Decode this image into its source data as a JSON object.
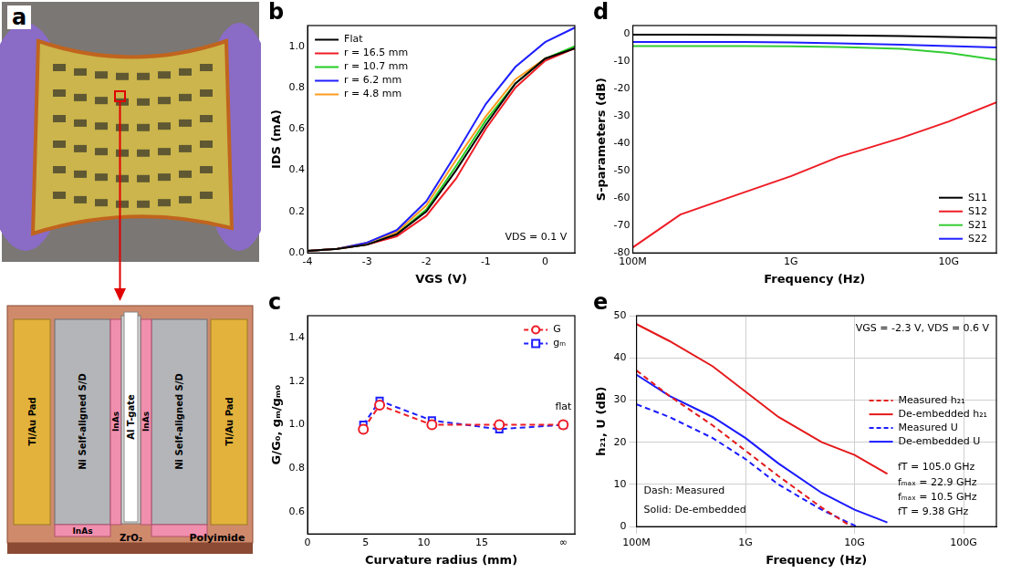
{
  "panel_a": {
    "panel": "a",
    "labels": [
      "InAs",
      "Ni Self-aligned S/D",
      "Ti/Au Pad",
      "InAs",
      "ZrO₂",
      "Al T-gate",
      "InAs",
      "Ni Self-aligned S/D",
      "Ti/Au Pad",
      "Polyimide"
    ]
  },
  "chart_data": [
    {
      "panel": "b",
      "type": "line",
      "x_label": "VGS (V)",
      "y_label": "IDS (mA)",
      "annotations": [
        "VDS = 0.1 V"
      ],
      "x": [
        -4,
        -3.5,
        -3,
        -2.5,
        -2,
        -1.5,
        -1,
        -0.5,
        0,
        0.5
      ],
      "series": [
        {
          "name": "Flat",
          "color": "#000000",
          "marker": "none",
          "line_style": "solid",
          "values": [
            0.01,
            0.02,
            0.04,
            0.09,
            0.2,
            0.4,
            0.62,
            0.82,
            0.94,
            0.99
          ]
        },
        {
          "name": "r = 16.5 mm",
          "color": "#ee1c25",
          "marker": "none",
          "line_style": "solid",
          "values": [
            0.01,
            0.02,
            0.04,
            0.08,
            0.18,
            0.36,
            0.6,
            0.8,
            0.93,
            0.99
          ]
        },
        {
          "name": "r = 10.7 mm",
          "color": "#22cc22",
          "marker": "none",
          "line_style": "solid",
          "values": [
            0.01,
            0.02,
            0.04,
            0.09,
            0.21,
            0.42,
            0.64,
            0.82,
            0.94,
            1.0
          ]
        },
        {
          "name": "r = 6.2 mm",
          "color": "#1f1fff",
          "marker": "none",
          "line_style": "solid",
          "values": [
            0.01,
            0.02,
            0.05,
            0.11,
            0.25,
            0.48,
            0.72,
            0.9,
            1.02,
            1.09
          ]
        },
        {
          "name": "r = 4.8 mm",
          "color": "#ff9a1f",
          "marker": "none",
          "line_style": "solid",
          "values": [
            0.01,
            0.02,
            0.05,
            0.1,
            0.23,
            0.45,
            0.66,
            0.84,
            0.94,
            0.99
          ]
        }
      ],
      "xlim": [
        -4,
        0.5
      ],
      "xticks": [
        -4,
        -3,
        -2,
        -1,
        0
      ],
      "ylim": [
        0,
        1.1
      ],
      "yticks": [
        {
          "value": 0,
          "label": "0.0"
        },
        {
          "value": 0.2,
          "label": "0.2"
        },
        {
          "value": 0.4,
          "label": "0.4"
        },
        {
          "value": 0.6,
          "label": "0.6"
        },
        {
          "value": 0.8,
          "label": "0.8"
        },
        {
          "value": 1,
          "label": "1.0"
        }
      ],
      "grid": false,
      "legend": "top-left"
    },
    {
      "panel": "c",
      "type": "line",
      "x_label": "Curvature radius (mm)",
      "y_label": "G/G₀, gₘ/gₘ₀",
      "annotations": [
        "flat"
      ],
      "x": [
        4.8,
        6.2,
        10.7,
        16.5,
        22
      ],
      "series": [
        {
          "name": "G",
          "color": "#ee1c25",
          "marker": "circle",
          "line_style": "dashed",
          "values": [
            0.98,
            1.09,
            1.0,
            1.0,
            1.0
          ]
        },
        {
          "name": "gₘ",
          "color": "#1f1fff",
          "marker": "square",
          "line_style": "dashed",
          "values": [
            1.0,
            1.11,
            1.02,
            0.98,
            1.0
          ]
        }
      ],
      "xlim": [
        0,
        23
      ],
      "xticks": [
        0,
        5,
        10,
        15,
        {
          "value": 22,
          "label": "∞"
        }
      ],
      "ylim": [
        0.5,
        1.5
      ],
      "yticks": [
        {
          "value": 0.6,
          "label": "0.6"
        },
        {
          "value": 0.8,
          "label": "0.8"
        },
        {
          "value": 1,
          "label": "1.0"
        },
        {
          "value": 1.2,
          "label": "1.2"
        },
        {
          "value": 1.4,
          "label": "1.4"
        }
      ],
      "grid": false,
      "legend": "top-right"
    },
    {
      "panel": "d",
      "type": "line",
      "x_label": "Frequency (Hz)",
      "y_label": "S-parameters (dB)",
      "annotations": [],
      "x": [
        100000000.0,
        200000000.0,
        500000000.0,
        1000000000.0,
        2000000000.0,
        5000000000.0,
        10000000000.0,
        20000000000.0
      ],
      "series": [
        {
          "name": "S11",
          "color": "#000000",
          "marker": "none",
          "line_style": "solid",
          "values": [
            -0.3,
            -0.3,
            -0.4,
            -0.5,
            -0.6,
            -0.8,
            -1.2,
            -1.5
          ]
        },
        {
          "name": "S12",
          "color": "#ee1c25",
          "marker": "none",
          "line_style": "solid",
          "values": [
            -78,
            -66,
            -58,
            -52,
            -45,
            -38,
            -32,
            -25
          ]
        },
        {
          "name": "S21",
          "color": "#33cc33",
          "marker": "none",
          "line_style": "solid",
          "values": [
            -4.5,
            -4.5,
            -4.5,
            -4.6,
            -4.8,
            -5.5,
            -7,
            -9.5
          ]
        },
        {
          "name": "S22",
          "color": "#1f1fff",
          "marker": "none",
          "line_style": "solid",
          "values": [
            -3,
            -3,
            -3,
            -3.2,
            -3.5,
            -4,
            -4.5,
            -5
          ]
        }
      ],
      "log": "x",
      "xlim": [
        100000000.0,
        20000000000.0
      ],
      "xticks": [
        {
          "value": 100000000.0,
          "label": "100M"
        },
        {
          "value": 1000000000.0,
          "label": "1G"
        },
        {
          "value": 10000000000.0,
          "label": "10G"
        }
      ],
      "ylim": [
        -80,
        3
      ],
      "yticks": [
        -80,
        -70,
        -60,
        -50,
        -40,
        -30,
        -20,
        -10,
        0
      ],
      "grid": false,
      "legend": "bottom-right"
    },
    {
      "panel": "e",
      "type": "line",
      "x_label": "Frequency (Hz)",
      "y_label": "h₂₁, U (dB)",
      "annotations": [
        "VGS = -2.3 V, VDS = 0.6 V",
        "fT = 9.38 GHz",
        "fₘₐₓ = 10.5 GHz",
        "fₘₐₓ = 22.9 GHz",
        "fT = 105.0 GHz",
        "Dash: Measured",
        "Solid: De-embedded"
      ],
      "series": [
        {
          "name": "Measured h₂₁",
          "color": "#e41a1c",
          "marker": "none",
          "line_style": "dashed",
          "x": [
            100000000.0,
            200000000.0,
            500000000.0,
            1000000000.0,
            2000000000.0,
            5000000000.0,
            9380000000.0
          ],
          "values": [
            37,
            31,
            24,
            18,
            12,
            4.5,
            0
          ]
        },
        {
          "name": "De-embedded h₂₁",
          "color": "#e41a1c",
          "marker": "none",
          "line_style": "solid",
          "x": [
            100000000.0,
            200000000.0,
            500000000.0,
            1000000000.0,
            2000000000.0,
            5000000000.0,
            10000000000.0,
            20000000000.0
          ],
          "values": [
            48,
            44,
            38,
            32,
            26,
            20,
            17,
            12.5
          ]
        },
        {
          "name": "Measured U",
          "color": "#1a1aff",
          "marker": "none",
          "line_style": "dashed",
          "x": [
            100000000.0,
            200000000.0,
            500000000.0,
            1000000000.0,
            2000000000.0,
            5000000000.0,
            10500000000.0
          ],
          "values": [
            29,
            26,
            21,
            16,
            10,
            4,
            0
          ]
        },
        {
          "name": "De-embedded U",
          "color": "#1a1aff",
          "marker": "none",
          "line_style": "solid",
          "x": [
            100000000.0,
            200000000.0,
            500000000.0,
            1000000000.0,
            2000000000.0,
            5000000000.0,
            10000000000.0,
            20000000000.0
          ],
          "values": [
            36,
            31,
            26,
            21,
            15,
            8,
            4,
            1
          ]
        }
      ],
      "log": "x",
      "xlim": [
        100000000.0,
        200000000000.0
      ],
      "xticks": [
        {
          "value": 100000000.0,
          "label": "100M"
        },
        {
          "value": 1000000000.0,
          "label": "1G"
        },
        {
          "value": 10000000000.0,
          "label": "10G"
        },
        {
          "value": 100000000000.0,
          "label": "100G"
        }
      ],
      "ylim": [
        0,
        50
      ],
      "yticks": [
        0,
        10,
        20,
        30,
        40,
        50
      ],
      "grid": true,
      "legend": "right"
    }
  ]
}
